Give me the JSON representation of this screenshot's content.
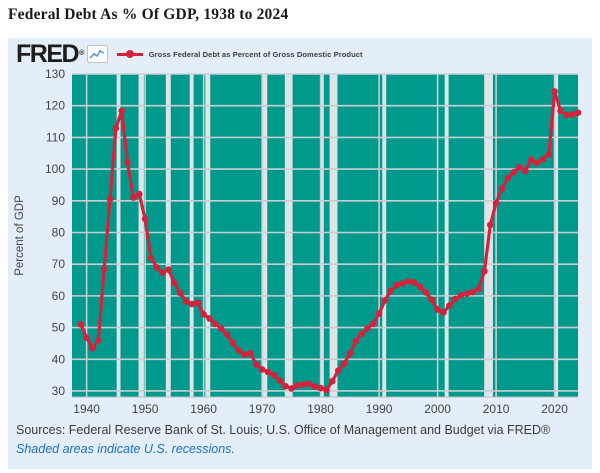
{
  "page": {
    "title": "Federal Debt As % Of GDP, 1938 to 2024",
    "source_line": "Sources: Federal Reserve Bank of St. Louis; U.S. Office of Management and Budget via FRED®",
    "recession_note": "Shaded areas indicate U.S. recessions."
  },
  "brand": {
    "logo_text": "FRED",
    "registered_mark": "®",
    "logo_icon": "line-chart-icon"
  },
  "legend": {
    "label": "Gross Federal Debt as Percent of Gross Domestic Product",
    "marker": "red-line-with-dot"
  },
  "colors": {
    "panel_background": "#e4eef8",
    "plot_background": "#009a8c",
    "gridline": "#c9ced2",
    "recession_band": "#dfe4e8",
    "series_line": "#d5223c",
    "tick_label": "#444444",
    "axis_title": "#444444",
    "source_text": "#3b3b3b",
    "note_text": "#1a6fc4",
    "plot_bottom_edge": "#b8c0c6"
  },
  "chart_data": {
    "type": "line",
    "title": "Federal Debt As % Of GDP, 1938 to 2024",
    "series_name": "Gross Federal Debt as Percent of Gross Domestic Product",
    "xlabel": "",
    "ylabel": "Percent of GDP",
    "grid": true,
    "legend_position": "top-left",
    "xlim": [
      1937.5,
      2024
    ],
    "ylim": [
      28.1,
      130
    ],
    "yticks": [
      30,
      40,
      50,
      60,
      70,
      80,
      90,
      100,
      110,
      120,
      130
    ],
    "xticks": [
      1940,
      1950,
      1960,
      1970,
      1980,
      1990,
      2000,
      2010,
      2020
    ],
    "x": [
      1939,
      1940,
      1941,
      1942,
      1943,
      1944,
      1945,
      1946,
      1947,
      1948,
      1949,
      1950,
      1951,
      1952,
      1953,
      1954,
      1955,
      1956,
      1957,
      1958,
      1959,
      1960,
      1961,
      1962,
      1963,
      1964,
      1965,
      1966,
      1967,
      1968,
      1969,
      1970,
      1971,
      1972,
      1973,
      1974,
      1975,
      1976,
      1977,
      1978,
      1979,
      1980,
      1981,
      1982,
      1983,
      1984,
      1985,
      1986,
      1987,
      1988,
      1989,
      1990,
      1991,
      1992,
      1993,
      1994,
      1995,
      1996,
      1997,
      1998,
      1999,
      2000,
      2001,
      2002,
      2003,
      2004,
      2005,
      2006,
      2007,
      2008,
      2009,
      2010,
      2011,
      2012,
      2013,
      2014,
      2015,
      2016,
      2017,
      2018,
      2019,
      2020,
      2021,
      2022,
      2023,
      2024
    ],
    "values": [
      51.0,
      46.8,
      43.5,
      46.0,
      68.5,
      90.5,
      112.9,
      118.4,
      102.0,
      91.0,
      92.1,
      84.3,
      72.0,
      69.0,
      67.3,
      68.3,
      64.1,
      60.9,
      58.2,
      57.4,
      57.9,
      54.2,
      52.9,
      51.2,
      49.7,
      47.8,
      45.2,
      42.8,
      41.5,
      41.9,
      38.4,
      36.8,
      36.0,
      35.0,
      33.3,
      31.5,
      30.8,
      31.8,
      32.0,
      32.3,
      31.4,
      30.9,
      30.3,
      33.1,
      36.4,
      38.6,
      41.8,
      45.7,
      48.0,
      49.7,
      51.2,
      54.4,
      58.6,
      61.6,
      63.4,
      63.9,
      64.6,
      64.3,
      62.9,
      61.1,
      58.8,
      55.7,
      54.8,
      56.9,
      59.0,
      60.2,
      60.7,
      61.2,
      62.2,
      67.8,
      82.4,
      89.3,
      93.8,
      97.2,
      99.0,
      100.7,
      99.4,
      103.0,
      101.9,
      103.1,
      104.6,
      124.5,
      118.4,
      117.1,
      117.3,
      117.8
    ],
    "recessions": [
      [
        1945.13,
        1945.79
      ],
      [
        1948.88,
        1949.79
      ],
      [
        1953.54,
        1954.38
      ],
      [
        1957.63,
        1958.29
      ],
      [
        1960.29,
        1961.13
      ],
      [
        1969.96,
        1970.88
      ],
      [
        1973.88,
        1975.21
      ],
      [
        1980.04,
        1980.54
      ],
      [
        1981.54,
        1982.88
      ],
      [
        1990.54,
        1991.21
      ],
      [
        2001.21,
        2001.88
      ],
      [
        2007.96,
        2009.46
      ],
      [
        2020.05,
        2020.6
      ]
    ]
  }
}
